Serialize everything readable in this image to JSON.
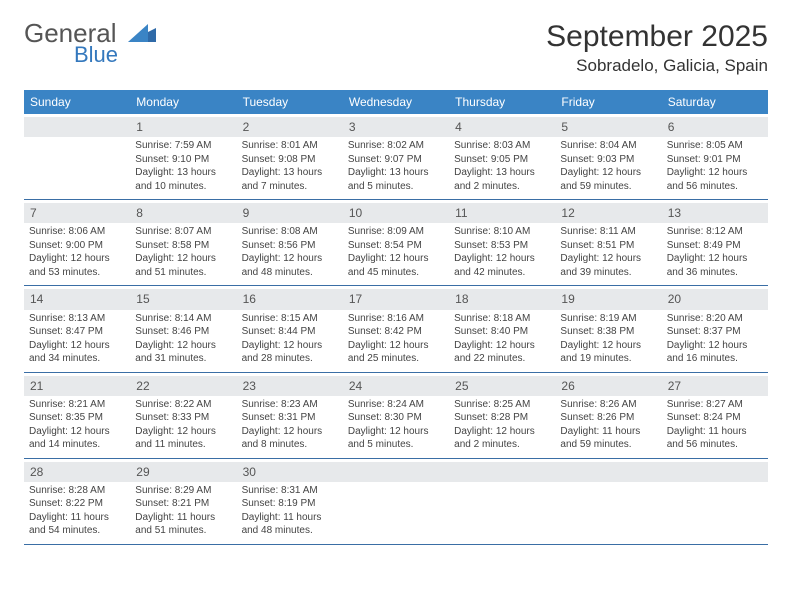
{
  "brand": {
    "name_top": "General",
    "name_bottom": "Blue"
  },
  "title": "September 2025",
  "location": "Sobradelo, Galicia, Spain",
  "colors": {
    "header_bg": "#3a84c5",
    "header_text": "#ffffff",
    "daynum_bg": "#e7e9eb",
    "week_border": "#3a6ea5",
    "brand_blue": "#3478bd"
  },
  "day_names": [
    "Sunday",
    "Monday",
    "Tuesday",
    "Wednesday",
    "Thursday",
    "Friday",
    "Saturday"
  ],
  "weeks": [
    [
      {
        "blank": true
      },
      {
        "n": "1",
        "sunrise": "7:59 AM",
        "sunset": "9:10 PM",
        "day": "13 hours and 10 minutes."
      },
      {
        "n": "2",
        "sunrise": "8:01 AM",
        "sunset": "9:08 PM",
        "day": "13 hours and 7 minutes."
      },
      {
        "n": "3",
        "sunrise": "8:02 AM",
        "sunset": "9:07 PM",
        "day": "13 hours and 5 minutes."
      },
      {
        "n": "4",
        "sunrise": "8:03 AM",
        "sunset": "9:05 PM",
        "day": "13 hours and 2 minutes."
      },
      {
        "n": "5",
        "sunrise": "8:04 AM",
        "sunset": "9:03 PM",
        "day": "12 hours and 59 minutes."
      },
      {
        "n": "6",
        "sunrise": "8:05 AM",
        "sunset": "9:01 PM",
        "day": "12 hours and 56 minutes."
      }
    ],
    [
      {
        "n": "7",
        "sunrise": "8:06 AM",
        "sunset": "9:00 PM",
        "day": "12 hours and 53 minutes."
      },
      {
        "n": "8",
        "sunrise": "8:07 AM",
        "sunset": "8:58 PM",
        "day": "12 hours and 51 minutes."
      },
      {
        "n": "9",
        "sunrise": "8:08 AM",
        "sunset": "8:56 PM",
        "day": "12 hours and 48 minutes."
      },
      {
        "n": "10",
        "sunrise": "8:09 AM",
        "sunset": "8:54 PM",
        "day": "12 hours and 45 minutes."
      },
      {
        "n": "11",
        "sunrise": "8:10 AM",
        "sunset": "8:53 PM",
        "day": "12 hours and 42 minutes."
      },
      {
        "n": "12",
        "sunrise": "8:11 AM",
        "sunset": "8:51 PM",
        "day": "12 hours and 39 minutes."
      },
      {
        "n": "13",
        "sunrise": "8:12 AM",
        "sunset": "8:49 PM",
        "day": "12 hours and 36 minutes."
      }
    ],
    [
      {
        "n": "14",
        "sunrise": "8:13 AM",
        "sunset": "8:47 PM",
        "day": "12 hours and 34 minutes."
      },
      {
        "n": "15",
        "sunrise": "8:14 AM",
        "sunset": "8:46 PM",
        "day": "12 hours and 31 minutes."
      },
      {
        "n": "16",
        "sunrise": "8:15 AM",
        "sunset": "8:44 PM",
        "day": "12 hours and 28 minutes."
      },
      {
        "n": "17",
        "sunrise": "8:16 AM",
        "sunset": "8:42 PM",
        "day": "12 hours and 25 minutes."
      },
      {
        "n": "18",
        "sunrise": "8:18 AM",
        "sunset": "8:40 PM",
        "day": "12 hours and 22 minutes."
      },
      {
        "n": "19",
        "sunrise": "8:19 AM",
        "sunset": "8:38 PM",
        "day": "12 hours and 19 minutes."
      },
      {
        "n": "20",
        "sunrise": "8:20 AM",
        "sunset": "8:37 PM",
        "day": "12 hours and 16 minutes."
      }
    ],
    [
      {
        "n": "21",
        "sunrise": "8:21 AM",
        "sunset": "8:35 PM",
        "day": "12 hours and 14 minutes."
      },
      {
        "n": "22",
        "sunrise": "8:22 AM",
        "sunset": "8:33 PM",
        "day": "12 hours and 11 minutes."
      },
      {
        "n": "23",
        "sunrise": "8:23 AM",
        "sunset": "8:31 PM",
        "day": "12 hours and 8 minutes."
      },
      {
        "n": "24",
        "sunrise": "8:24 AM",
        "sunset": "8:30 PM",
        "day": "12 hours and 5 minutes."
      },
      {
        "n": "25",
        "sunrise": "8:25 AM",
        "sunset": "8:28 PM",
        "day": "12 hours and 2 minutes."
      },
      {
        "n": "26",
        "sunrise": "8:26 AM",
        "sunset": "8:26 PM",
        "day": "11 hours and 59 minutes."
      },
      {
        "n": "27",
        "sunrise": "8:27 AM",
        "sunset": "8:24 PM",
        "day": "11 hours and 56 minutes."
      }
    ],
    [
      {
        "n": "28",
        "sunrise": "8:28 AM",
        "sunset": "8:22 PM",
        "day": "11 hours and 54 minutes."
      },
      {
        "n": "29",
        "sunrise": "8:29 AM",
        "sunset": "8:21 PM",
        "day": "11 hours and 51 minutes."
      },
      {
        "n": "30",
        "sunrise": "8:31 AM",
        "sunset": "8:19 PM",
        "day": "11 hours and 48 minutes."
      },
      {
        "blank": true
      },
      {
        "blank": true
      },
      {
        "blank": true
      },
      {
        "blank": true
      }
    ]
  ],
  "labels": {
    "sunrise": "Sunrise:",
    "sunset": "Sunset:",
    "daylight": "Daylight:"
  }
}
